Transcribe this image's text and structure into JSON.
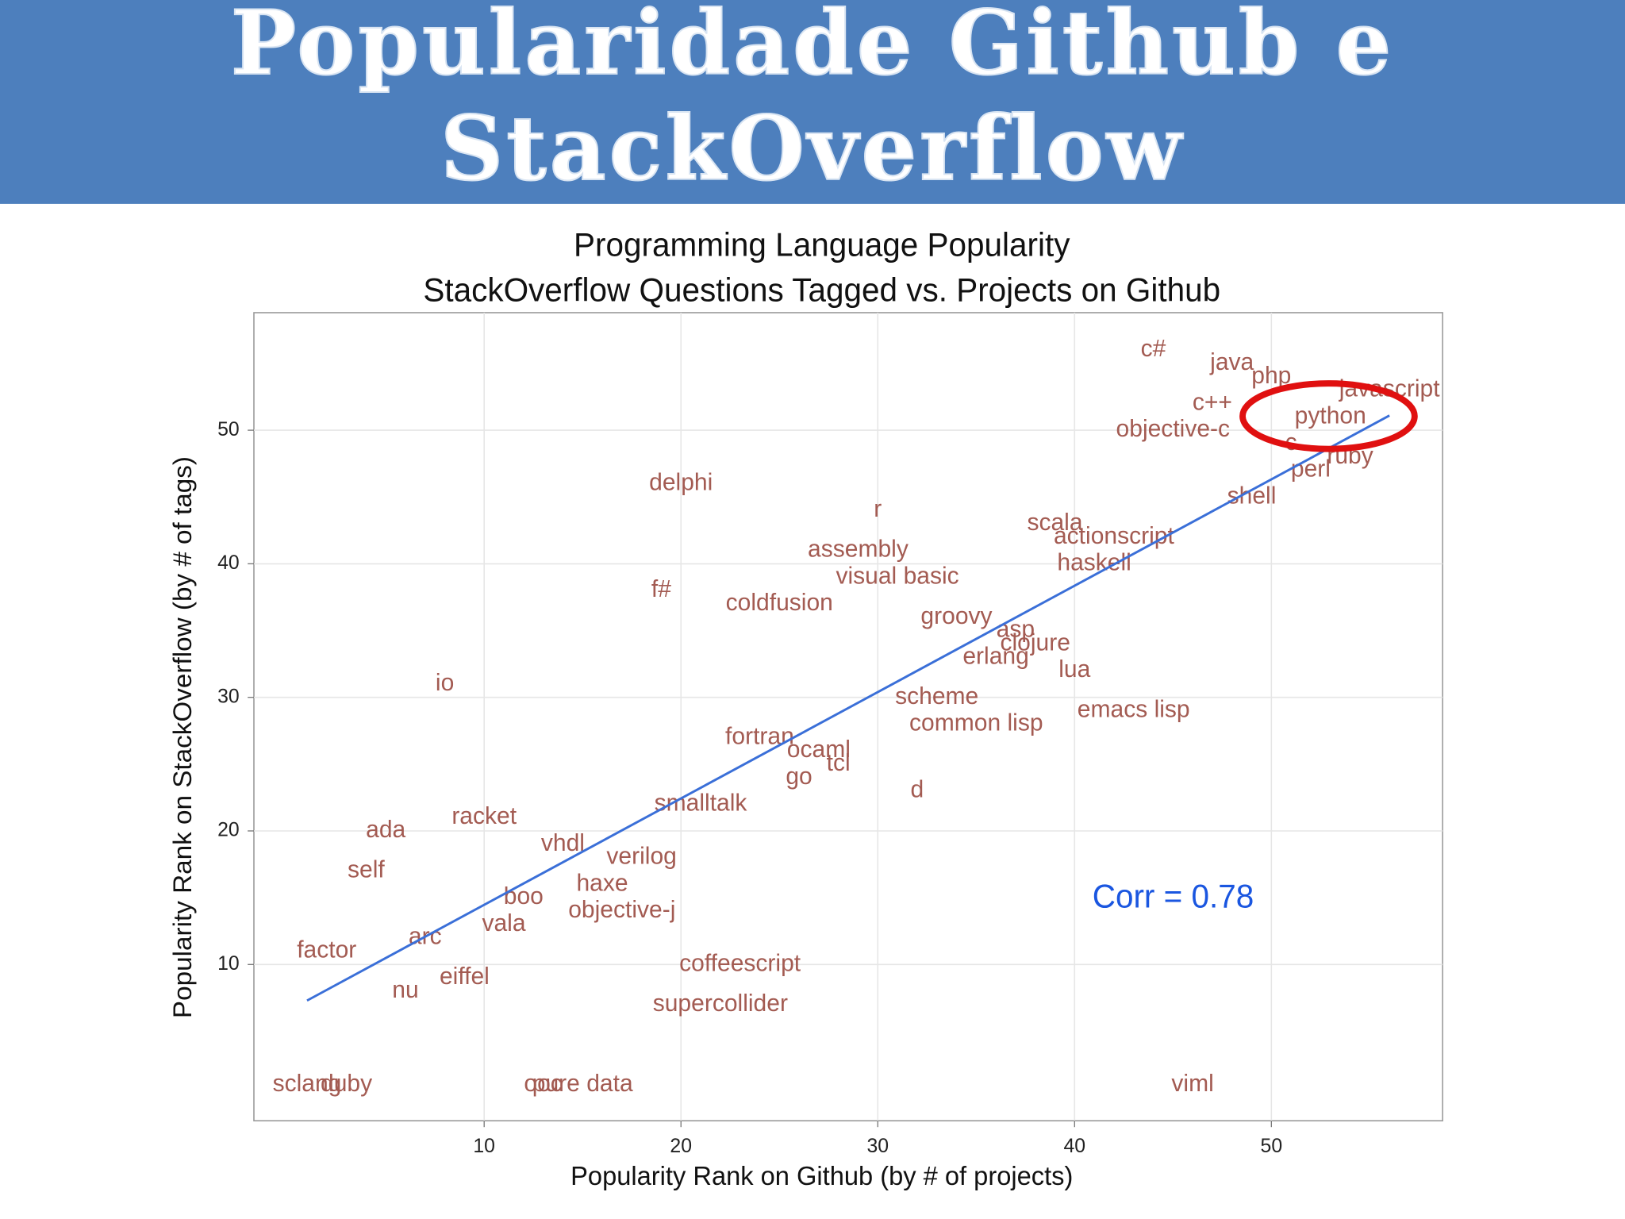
{
  "header": {
    "title": [
      "Popularidade Github e",
      "StackOverflow"
    ]
  },
  "chart_data": {
    "type": "scatter",
    "title": "Programming Language Popularity",
    "subtitle": "StackOverflow Questions Tagged vs. Projects on Github",
    "x_label": "Popularity Rank on Github (by # of projects)",
    "y_label": "Popularity Rank on StackOverflow (by # of tags)",
    "annotation": "Corr =  0.78",
    "color": "#a35b52",
    "fit_color": "#3a6fd8",
    "grid": true,
    "xlim": [
      -1.7,
      58.7
    ],
    "ylim": [
      -1.7,
      58.8
    ],
    "xticks": [
      10,
      20,
      30,
      40,
      50
    ],
    "yticks": [
      10,
      20,
      30,
      40,
      50
    ],
    "labels": [
      "c#",
      "java",
      "php",
      "javascript",
      "c++",
      "python",
      "objective-c",
      "c",
      "ruby",
      "perl",
      "shell",
      "delphi",
      "r",
      "scala",
      "actionscript",
      "assembly",
      "haskell",
      "visual basic",
      "f#",
      "coldfusion",
      "groovy",
      "asp",
      "clojure",
      "erlang",
      "lua",
      "io",
      "scheme",
      "emacs lisp",
      "common lisp",
      "fortran",
      "ocaml",
      "tcl",
      "go",
      "d",
      "smalltalk",
      "racket",
      "ada",
      "vhdl",
      "verilog",
      "self",
      "haxe",
      "boo",
      "objective-j",
      "vala",
      "arc",
      "factor",
      "coffeescript",
      "eiffel",
      "nu",
      "supercollider",
      "sclang",
      "duby",
      "ooc",
      "pure data",
      "viml"
    ],
    "x": [
      44,
      48,
      50,
      56,
      47,
      53,
      45,
      51,
      54,
      52,
      49,
      20,
      30,
      39,
      42,
      29,
      41,
      31,
      19,
      25,
      34,
      37,
      38,
      36,
      40,
      8,
      33,
      43,
      35,
      24,
      27,
      28,
      26,
      32,
      21,
      10,
      5,
      14,
      18,
      4,
      16,
      12,
      17,
      11,
      7,
      2,
      23,
      9,
      6,
      22,
      1,
      3,
      13,
      15,
      46
    ],
    "y": [
      56,
      55,
      54,
      53,
      52,
      51,
      50,
      49,
      48,
      47,
      45,
      46,
      44,
      43,
      42,
      41,
      40,
      39,
      38,
      37,
      36,
      35,
      34,
      33,
      32,
      31,
      30,
      29,
      28,
      27,
      26,
      25,
      24,
      23,
      22,
      21,
      20,
      19,
      18,
      17,
      16,
      15,
      14,
      13,
      12,
      11,
      10,
      9,
      8,
      7,
      1,
      1,
      1,
      1,
      1
    ],
    "fit_line": {
      "x": [
        1,
        56
      ],
      "y": [
        7.3,
        51.1
      ]
    }
  }
}
